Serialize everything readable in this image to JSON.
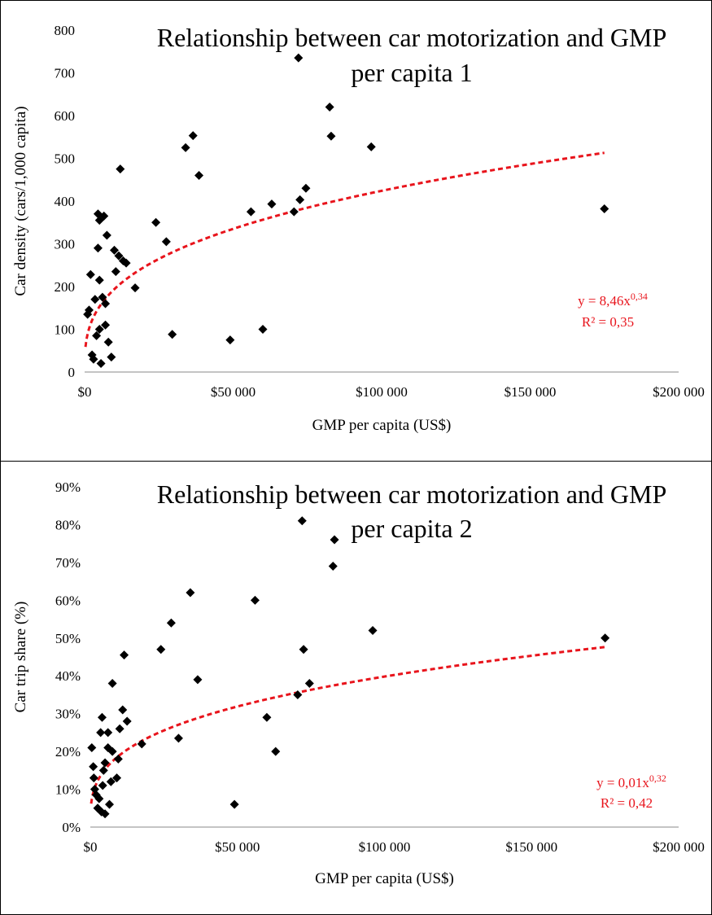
{
  "chart_data": [
    {
      "type": "scatter",
      "title": "Relationship between car motorization and GMP per capita 1",
      "title_lines": [
        "Relationship between car motorization and GMP",
        "per capita 1"
      ],
      "xlabel": "GMP per capita (US$)",
      "ylabel": "Car density (cars/1,000 capita)",
      "xlim": [
        0,
        200000
      ],
      "ylim": [
        0,
        800
      ],
      "x_ticks": [
        0,
        50000,
        100000,
        150000,
        200000
      ],
      "x_tick_labels": [
        "$0",
        "$50 000",
        "$100 000",
        "$150 000",
        "$200 000"
      ],
      "y_ticks": [
        0,
        100,
        200,
        300,
        400,
        500,
        600,
        700,
        800
      ],
      "y_tick_labels": [
        "0",
        "100",
        "200",
        "300",
        "400",
        "500",
        "600",
        "700",
        "800"
      ],
      "grid": false,
      "marker_color": "#000000",
      "trend_color": "#e8141c",
      "trendline": {
        "type": "power",
        "a": 8.46,
        "b": 0.34,
        "x_range": [
          300,
          175000
        ]
      },
      "equation": {
        "lhs": "y = 8,46x",
        "exp": "0,34",
        "r2": "R² = 0,35"
      },
      "points": [
        [
          1000,
          135
        ],
        [
          1500,
          145
        ],
        [
          2000,
          228
        ],
        [
          2500,
          40
        ],
        [
          3000,
          30
        ],
        [
          3500,
          170
        ],
        [
          4000,
          85
        ],
        [
          4500,
          290
        ],
        [
          4500,
          370
        ],
        [
          5000,
          355
        ],
        [
          5000,
          215
        ],
        [
          5000,
          100
        ],
        [
          5500,
          20
        ],
        [
          6000,
          175
        ],
        [
          6500,
          365
        ],
        [
          7000,
          160
        ],
        [
          7000,
          110
        ],
        [
          7500,
          320
        ],
        [
          8000,
          70
        ],
        [
          9000,
          35
        ],
        [
          10000,
          285
        ],
        [
          10500,
          235
        ],
        [
          11500,
          272
        ],
        [
          12000,
          475
        ],
        [
          13000,
          260
        ],
        [
          14000,
          255
        ],
        [
          17000,
          197
        ],
        [
          24000,
          350
        ],
        [
          27500,
          305
        ],
        [
          29500,
          88
        ],
        [
          34000,
          525
        ],
        [
          36500,
          553
        ],
        [
          38500,
          460
        ],
        [
          49000,
          75
        ],
        [
          56000,
          375
        ],
        [
          60000,
          100
        ],
        [
          63000,
          393
        ],
        [
          70500,
          375
        ],
        [
          72000,
          735
        ],
        [
          72500,
          403
        ],
        [
          74500,
          430
        ],
        [
          82500,
          620
        ],
        [
          83000,
          552
        ],
        [
          96500,
          527
        ],
        [
          175000,
          382
        ]
      ]
    },
    {
      "type": "scatter",
      "title": "Relationship between car motorization and GMP per capita 2",
      "title_lines": [
        "Relationship between car motorization and GMP",
        "per capita 2"
      ],
      "xlabel": "GMP per capita (US$)",
      "ylabel": "Car trip share (%)",
      "xlim": [
        0,
        200000
      ],
      "ylim": [
        0,
        0.9
      ],
      "x_ticks": [
        0,
        50000,
        100000,
        150000,
        200000
      ],
      "x_tick_labels": [
        "$0",
        "$50 000",
        "$100 000",
        "$150 000",
        "$200 000"
      ],
      "y_ticks": [
        0,
        0.1,
        0.2,
        0.3,
        0.4,
        0.5,
        0.6,
        0.7,
        0.8,
        0.9
      ],
      "y_tick_labels": [
        "0%",
        "10%",
        "20%",
        "30%",
        "40%",
        "50%",
        "60%",
        "70%",
        "80%",
        "90%"
      ],
      "grid": false,
      "marker_color": "#000000",
      "trend_color": "#e8141c",
      "trendline": {
        "type": "power",
        "a": 0.01,
        "b": 0.32,
        "x_range": [
          300,
          175000
        ]
      },
      "equation": {
        "lhs": "y = 0,01x",
        "exp": "0,32",
        "r2": "R² = 0,42"
      },
      "points": [
        [
          500,
          0.21
        ],
        [
          1000,
          0.16
        ],
        [
          1200,
          0.13
        ],
        [
          1500,
          0.1
        ],
        [
          2000,
          0.085
        ],
        [
          2500,
          0.05
        ],
        [
          3000,
          0.075
        ],
        [
          3500,
          0.25
        ],
        [
          3800,
          0.04
        ],
        [
          4000,
          0.29
        ],
        [
          4200,
          0.11
        ],
        [
          4500,
          0.15
        ],
        [
          5000,
          0.17
        ],
        [
          5000,
          0.035
        ],
        [
          6000,
          0.21
        ],
        [
          6000,
          0.25
        ],
        [
          6500,
          0.06
        ],
        [
          7000,
          0.12
        ],
        [
          7500,
          0.2
        ],
        [
          7500,
          0.38
        ],
        [
          9000,
          0.13
        ],
        [
          9500,
          0.18
        ],
        [
          10000,
          0.26
        ],
        [
          11000,
          0.31
        ],
        [
          11500,
          0.455
        ],
        [
          12500,
          0.28
        ],
        [
          17500,
          0.22
        ],
        [
          24000,
          0.47
        ],
        [
          27500,
          0.54
        ],
        [
          30000,
          0.235
        ],
        [
          34000,
          0.62
        ],
        [
          36500,
          0.39
        ],
        [
          49000,
          0.06
        ],
        [
          56000,
          0.6
        ],
        [
          60000,
          0.29
        ],
        [
          63000,
          0.2
        ],
        [
          70500,
          0.35
        ],
        [
          72000,
          0.81
        ],
        [
          72500,
          0.47
        ],
        [
          74500,
          0.38
        ],
        [
          82500,
          0.69
        ],
        [
          83000,
          0.76
        ],
        [
          96000,
          0.52
        ],
        [
          175000,
          0.5
        ]
      ]
    }
  ]
}
